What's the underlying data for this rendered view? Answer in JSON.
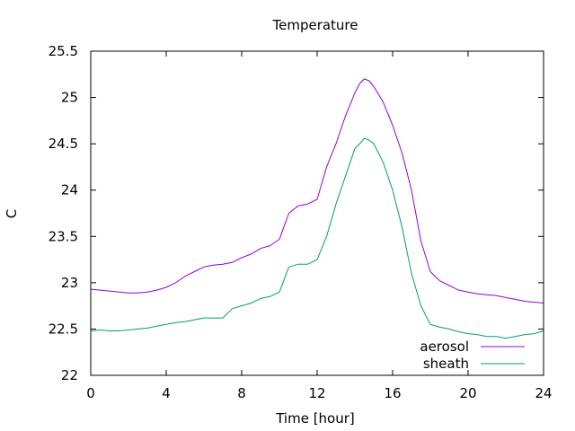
{
  "chart_data": {
    "type": "line",
    "title": "Temperature",
    "xlabel": "Time [hour]",
    "ylabel": "C",
    "xlim": [
      0,
      24
    ],
    "ylim": [
      22,
      25.5
    ],
    "xticks": [
      0,
      4,
      8,
      12,
      16,
      20,
      24
    ],
    "yticks": [
      22,
      22.5,
      23,
      23.5,
      24,
      24.5,
      25,
      25.5
    ],
    "xtick_labels": [
      "0",
      "4",
      "8",
      "12",
      "16",
      "20",
      "24"
    ],
    "ytick_labels": [
      "22",
      "22.5",
      "23",
      "23.5",
      "24",
      "24.5",
      "25",
      "25.5"
    ],
    "grid": false,
    "legend_position": "bottom-right",
    "series": [
      {
        "name": "aerosol",
        "color": "#9400d3",
        "x": [
          0,
          0.5,
          1,
          1.5,
          2,
          2.5,
          3,
          3.5,
          4,
          4.5,
          5,
          5.5,
          6,
          6.5,
          7,
          7.5,
          8,
          8.5,
          9,
          9.5,
          10,
          10.5,
          11,
          11.5,
          12,
          12.5,
          13,
          13.5,
          14,
          14.25,
          14.5,
          14.75,
          15,
          15.5,
          16,
          16.5,
          17,
          17.5,
          18,
          18.5,
          19,
          19.5,
          20,
          20.5,
          21,
          21.5,
          22,
          22.5,
          23,
          23.5,
          24
        ],
        "y": [
          22.93,
          22.92,
          22.91,
          22.9,
          22.89,
          22.89,
          22.9,
          22.92,
          22.95,
          23.0,
          23.07,
          23.12,
          23.17,
          23.19,
          23.2,
          23.22,
          23.27,
          23.31,
          23.37,
          23.4,
          23.47,
          23.75,
          23.83,
          23.85,
          23.9,
          24.25,
          24.5,
          24.8,
          25.05,
          25.15,
          25.2,
          25.18,
          25.12,
          24.95,
          24.7,
          24.4,
          24.0,
          23.45,
          23.12,
          23.02,
          22.97,
          22.92,
          22.9,
          22.88,
          22.87,
          22.86,
          22.84,
          22.82,
          22.8,
          22.79,
          22.78
        ]
      },
      {
        "name": "sheath",
        "color": "#009e73",
        "x": [
          0,
          0.5,
          1,
          1.5,
          2,
          2.5,
          3,
          3.5,
          4,
          4.5,
          5,
          5.5,
          6,
          6.5,
          7,
          7.5,
          8,
          8.5,
          9,
          9.5,
          10,
          10.5,
          11,
          11.5,
          12,
          12.5,
          13,
          13.5,
          14,
          14.25,
          14.5,
          14.75,
          15,
          15.5,
          16,
          16.5,
          17,
          17.5,
          18,
          18.5,
          19,
          19.5,
          20,
          20.5,
          21,
          21.5,
          22,
          22.5,
          23,
          23.5,
          24
        ],
        "y": [
          22.48,
          22.49,
          22.48,
          22.48,
          22.49,
          22.5,
          22.51,
          22.53,
          22.55,
          22.57,
          22.58,
          22.6,
          22.62,
          22.62,
          22.62,
          22.72,
          22.75,
          22.78,
          22.83,
          22.85,
          22.9,
          23.17,
          23.2,
          23.2,
          23.25,
          23.5,
          23.85,
          24.15,
          24.45,
          24.5,
          24.56,
          24.54,
          24.5,
          24.3,
          24.0,
          23.6,
          23.1,
          22.75,
          22.55,
          22.52,
          22.5,
          22.47,
          22.45,
          22.44,
          22.42,
          22.42,
          22.4,
          22.42,
          22.44,
          22.45,
          22.48
        ]
      }
    ]
  }
}
